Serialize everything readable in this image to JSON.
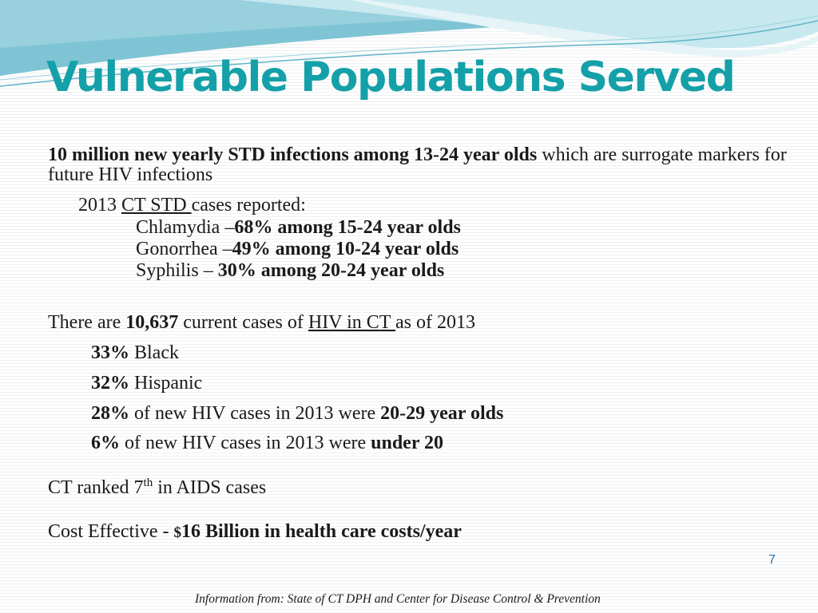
{
  "title": "Vulnerable Populations Served",
  "intro": {
    "bold": "10 million new yearly STD infections among 13-24 year olds",
    "rest": " which are surrogate markers for future HIV infections"
  },
  "std_2013": {
    "prefix": "2013 ",
    "link": "CT STD ",
    "suffix": "cases reported:",
    "items": [
      {
        "label": "Chlamydia –",
        "stat": "68% among 15-24 year olds"
      },
      {
        "label": "Gonorrhea –",
        "stat": "49% among 10-24 year olds"
      },
      {
        "label": "Syphilis – ",
        "stat": "30% among 20-24 year olds"
      }
    ]
  },
  "hiv": {
    "pre": "There are ",
    "count": "10,637",
    "mid": " current cases of ",
    "link": "HIV in CT ",
    "post": "as of 2013",
    "black": {
      "pct": "33%",
      "text": " Black"
    },
    "hispanic": {
      "pct": "32%",
      "text": " Hispanic"
    },
    "age_20_29": {
      "pct": "28%",
      "text": " of new HIV cases in 2013 were ",
      "emph": "20-29 year olds"
    },
    "under_20": {
      "pct": "6%",
      "text": " of new HIV cases in 2013 were ",
      "emph": "under 20"
    }
  },
  "aids": {
    "pre": "CT ranked 7",
    "sup": "th",
    "post": " in AIDS cases"
  },
  "cost": {
    "pre": "Cost Effective - ",
    "dollar": "$",
    "emph": "16 Billion in health care costs/year"
  },
  "slide_number": "7",
  "footer": "Information from: State of CT DPH  and Center for Disease Control & Prevention",
  "colors": {
    "title": "#14a0a8",
    "swoosh_dark": "#7fc4d4",
    "swoosh_light": "#c7e8ef",
    "slide_number": "#1f6fa8"
  }
}
